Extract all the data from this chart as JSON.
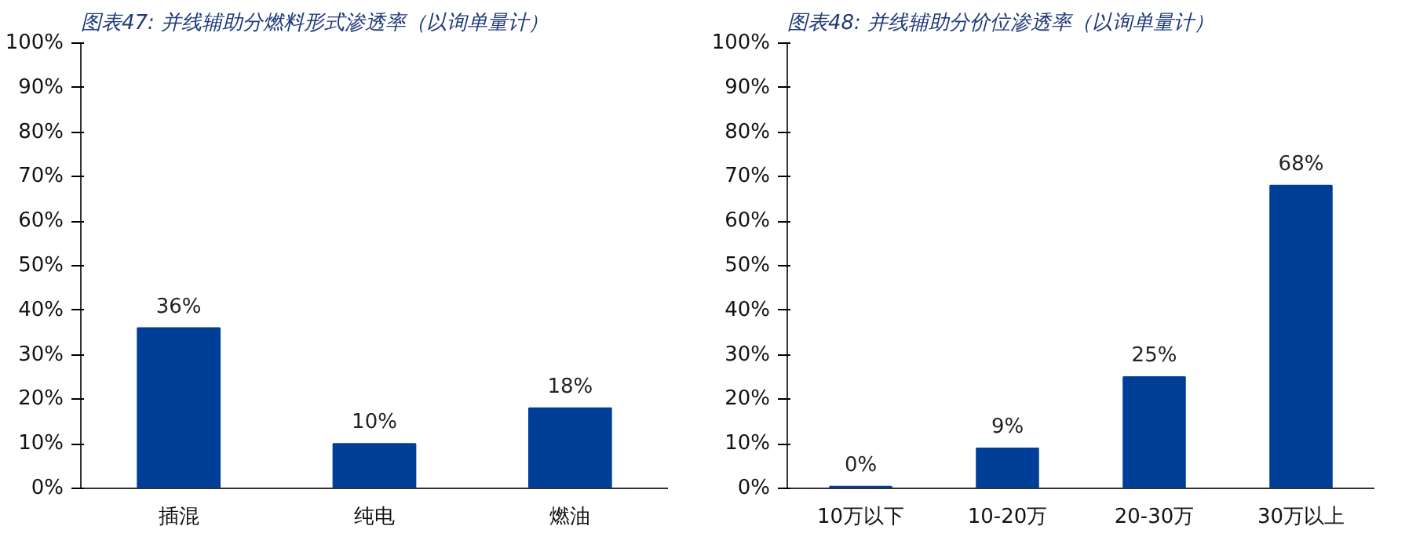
{
  "chart_data": [
    {
      "type": "bar",
      "title": "图表47:  并线辅助分燃料形式渗透率（以询单量计）",
      "categories": [
        "插混",
        "纯电",
        "燃油"
      ],
      "values": [
        36,
        10,
        18
      ],
      "value_labels": [
        "36%",
        "10%",
        "18%"
      ],
      "color": "#003f98",
      "ylim": [
        0,
        100
      ],
      "yticks": [
        {
          "value": 0,
          "label": "0%"
        },
        {
          "value": 10,
          "label": "10%"
        },
        {
          "value": 20,
          "label": "20%"
        },
        {
          "value": 30,
          "label": "30%"
        },
        {
          "value": 40,
          "label": "40%"
        },
        {
          "value": 50,
          "label": "50%"
        },
        {
          "value": 60,
          "label": "60%"
        },
        {
          "value": 70,
          "label": "70%"
        },
        {
          "value": 80,
          "label": "80%"
        },
        {
          "value": 90,
          "label": "90%"
        },
        {
          "value": 100,
          "label": "100%"
        }
      ],
      "grid": false
    },
    {
      "type": "bar",
      "title": "图表48:  并线辅助分价位渗透率（以询单量计）",
      "categories": [
        "10万以下",
        "10-20万",
        "20-30万",
        "30万以上"
      ],
      "values": [
        0.4,
        9,
        25,
        68
      ],
      "value_labels": [
        "0%",
        "9%",
        "25%",
        "68%"
      ],
      "color": "#003f98",
      "ylim": [
        0,
        100
      ],
      "yticks": [
        {
          "value": 0,
          "label": "0%"
        },
        {
          "value": 10,
          "label": "10%"
        },
        {
          "value": 20,
          "label": "20%"
        },
        {
          "value": 30,
          "label": "30%"
        },
        {
          "value": 40,
          "label": "40%"
        },
        {
          "value": 50,
          "label": "50%"
        },
        {
          "value": 60,
          "label": "60%"
        },
        {
          "value": 70,
          "label": "70%"
        },
        {
          "value": 80,
          "label": "80%"
        },
        {
          "value": 90,
          "label": "90%"
        },
        {
          "value": 100,
          "label": "100%"
        }
      ],
      "grid": false
    }
  ]
}
